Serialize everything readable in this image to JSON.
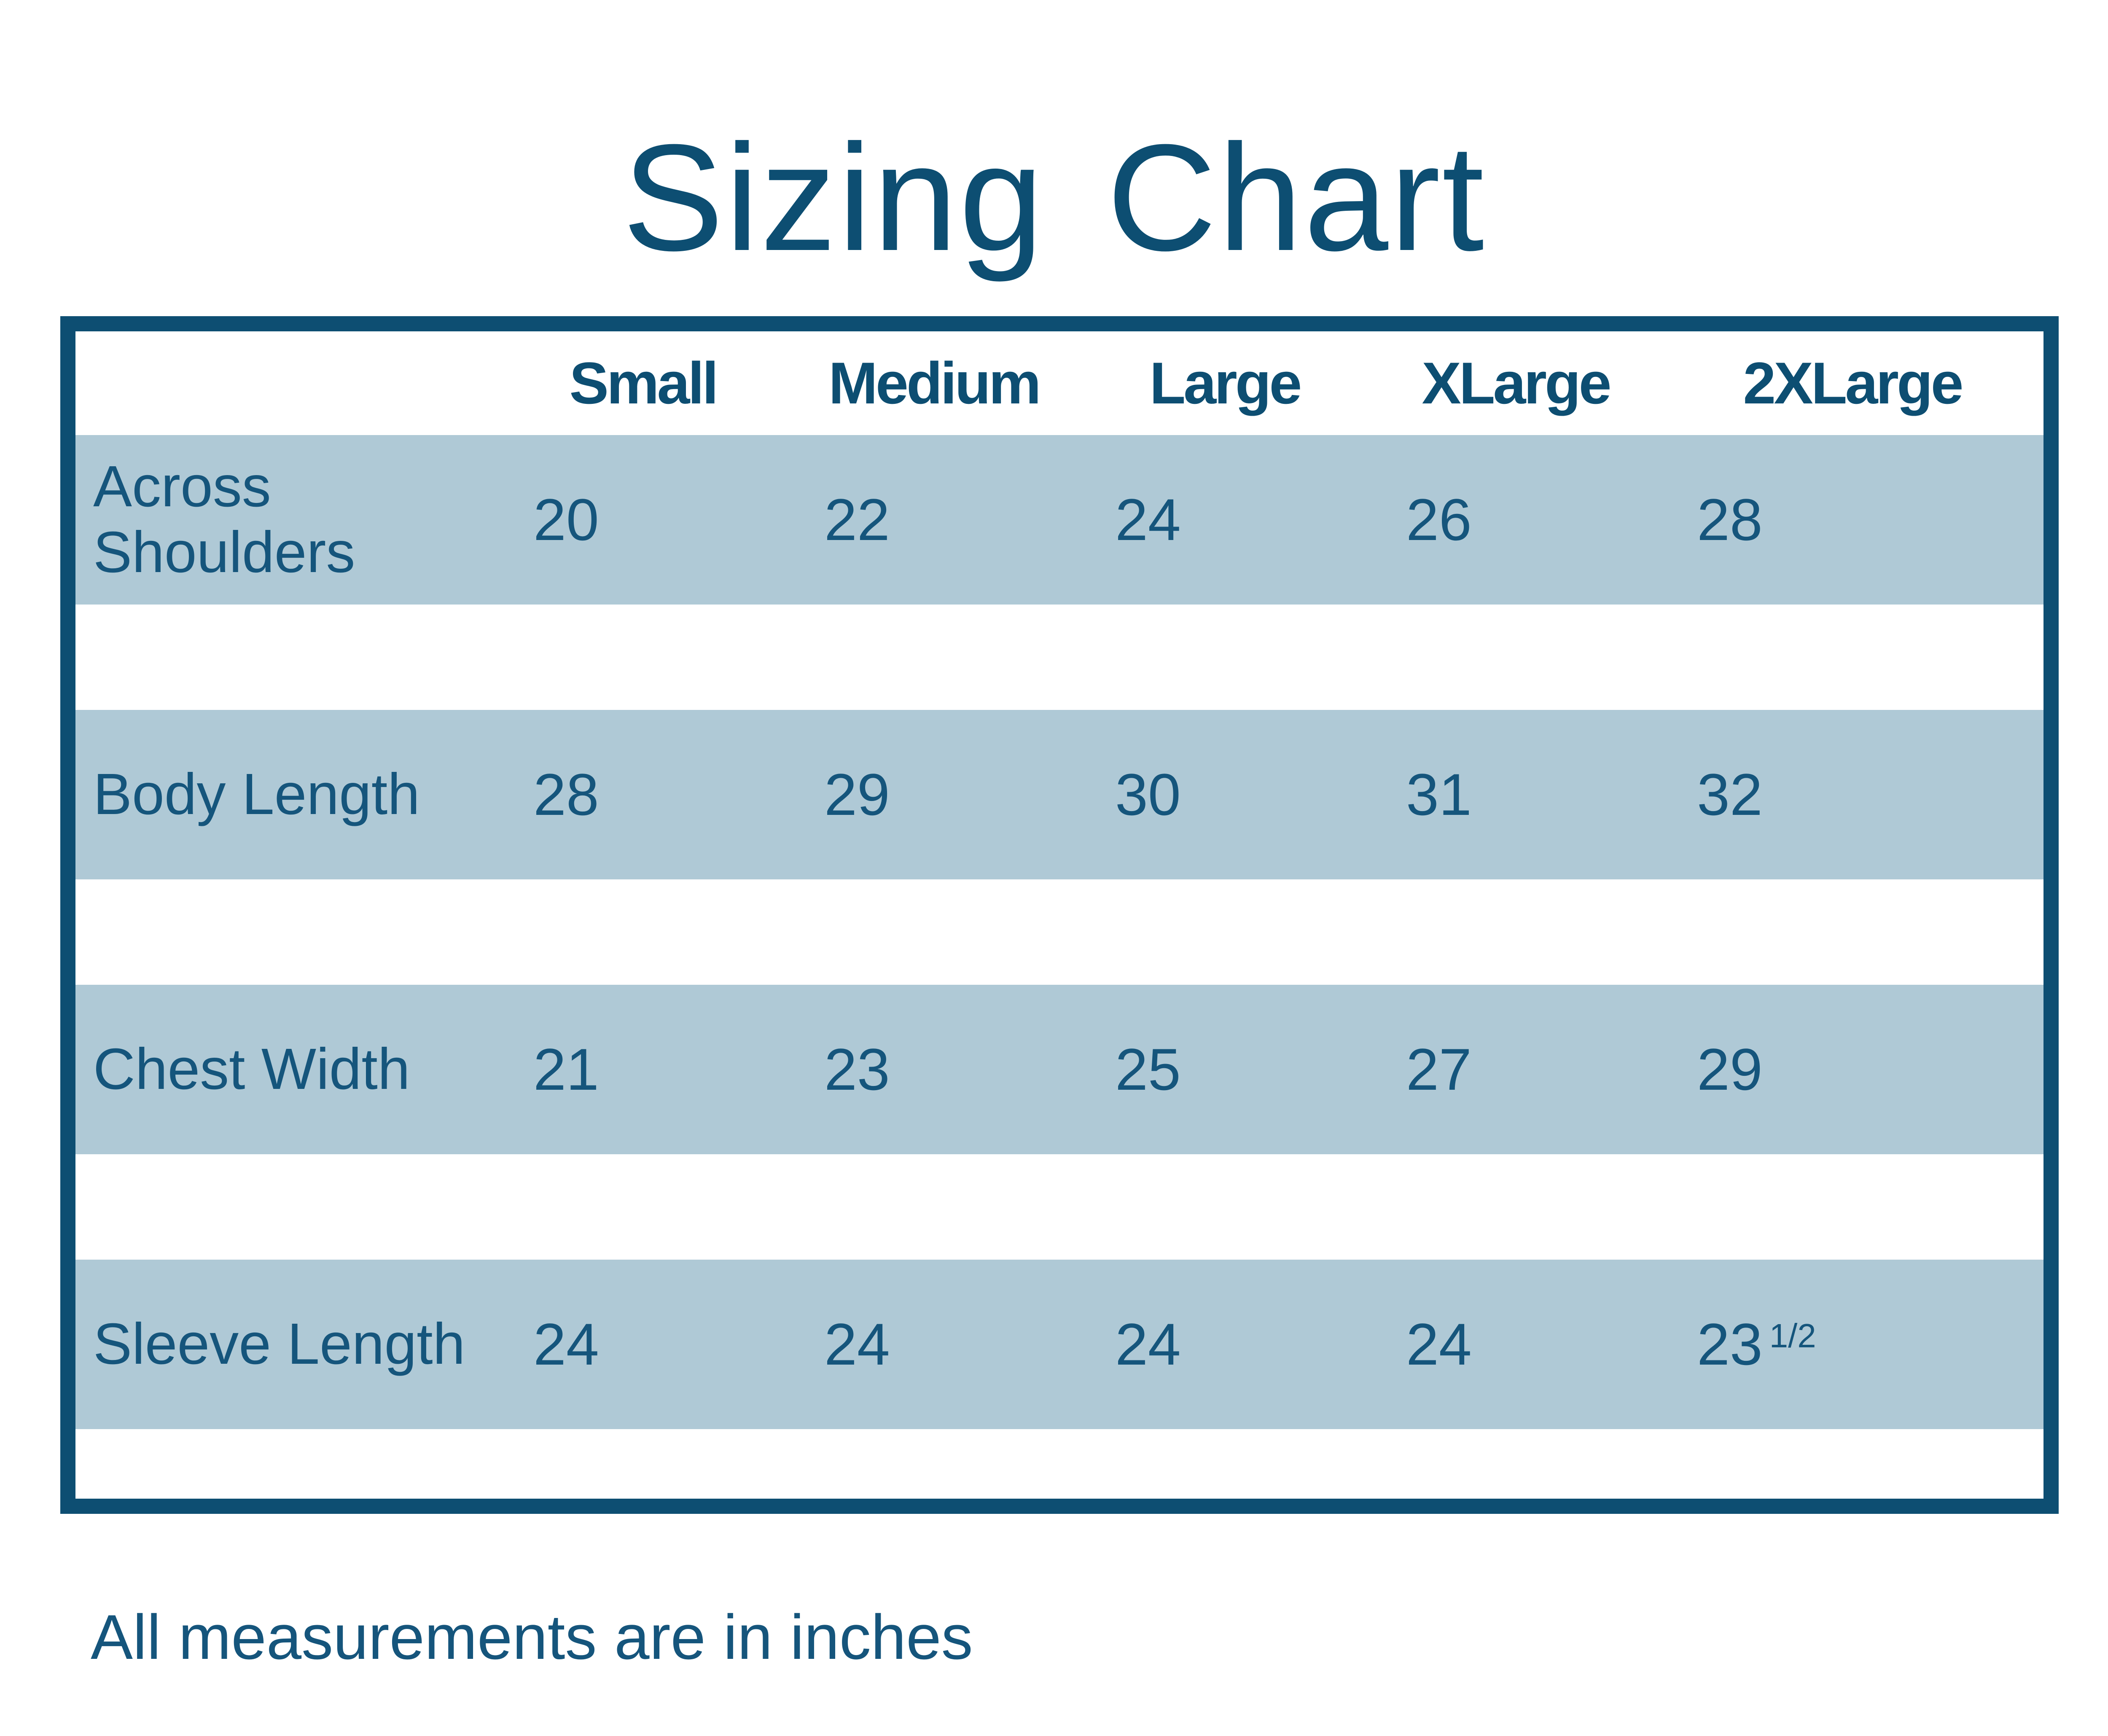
{
  "page": {
    "title": "Sizing Chart",
    "note": "All measurements are in inches"
  },
  "colors": {
    "ink": "#0d4e72",
    "text": "#15557c",
    "band": "#afc9d6",
    "background": "#ffffff"
  },
  "table": {
    "columns": [
      "Small",
      "Medium",
      "Large",
      "XLarge",
      "2XLarge"
    ],
    "rows": [
      {
        "label": "Across Shoulders",
        "cells": [
          {
            "v": "20"
          },
          {
            "v": "22"
          },
          {
            "v": "24"
          },
          {
            "v": "26"
          },
          {
            "v": "28"
          }
        ]
      },
      {
        "label": "Body Length",
        "cells": [
          {
            "v": "28"
          },
          {
            "v": "29"
          },
          {
            "v": "30"
          },
          {
            "v": "31"
          },
          {
            "v": "32"
          }
        ]
      },
      {
        "label": "Chest Width",
        "cells": [
          {
            "v": "21"
          },
          {
            "v": "23"
          },
          {
            "v": "25"
          },
          {
            "v": "27"
          },
          {
            "v": "29"
          }
        ]
      },
      {
        "label": "Sleeve Length",
        "cells": [
          {
            "v": "24"
          },
          {
            "v": "24"
          },
          {
            "v": "24"
          },
          {
            "v": "24"
          },
          {
            "v": "23",
            "sup": "1/2"
          }
        ]
      }
    ]
  },
  "chart_data": {
    "type": "table",
    "title": "Sizing Chart",
    "columns": [
      "Small",
      "Medium",
      "Large",
      "XLarge",
      "2XLarge"
    ],
    "row_labels": [
      "Across Shoulders",
      "Body Length",
      "Chest Width",
      "Sleeve Length"
    ],
    "values": [
      [
        20,
        22,
        24,
        26,
        28
      ],
      [
        28,
        29,
        30,
        31,
        32
      ],
      [
        21,
        23,
        25,
        27,
        29
      ],
      [
        24,
        24,
        24,
        24,
        23.5
      ]
    ],
    "units": "inches",
    "note": "All measurements are in inches"
  }
}
